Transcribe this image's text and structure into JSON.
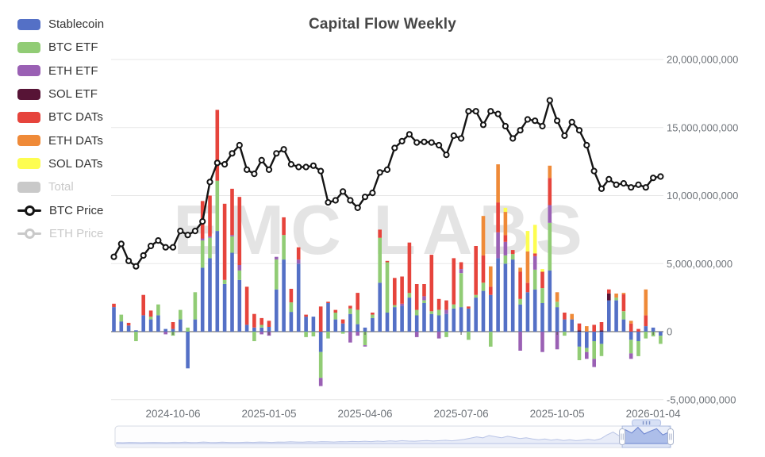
{
  "title": "Capital Flow Weekly",
  "watermark": "EMC LABS",
  "legend": {
    "items": [
      {
        "label": "Stablecoin",
        "color": "#5470c6",
        "enabled": true,
        "type": "rect"
      },
      {
        "label": "BTC ETF",
        "color": "#91cc75",
        "enabled": true,
        "type": "rect"
      },
      {
        "label": "ETH ETF",
        "color": "#9a60b4",
        "enabled": true,
        "type": "rect"
      },
      {
        "label": "SOL ETF",
        "color": "#571436",
        "enabled": true,
        "type": "rect"
      },
      {
        "label": "BTC DATs",
        "color": "#e6443c",
        "enabled": true,
        "type": "rect"
      },
      {
        "label": "ETH DATs",
        "color": "#ef8a38",
        "enabled": true,
        "type": "rect"
      },
      {
        "label": "SOL DATs",
        "color": "#fdfd50",
        "enabled": true,
        "type": "rect"
      },
      {
        "label": "Total",
        "color": "#c9c9c9",
        "enabled": false,
        "type": "rect"
      },
      {
        "label": "BTC Price",
        "color": "#141414",
        "enabled": true,
        "type": "line"
      },
      {
        "label": "ETH Price",
        "color": "#c9c9c9",
        "enabled": false,
        "type": "line"
      }
    ]
  },
  "chart_data": {
    "type": "bar",
    "subtype": "stacked-bar-with-line",
    "bar_unit": "USD (weekly net flow)",
    "ylabel": "",
    "xlabel": "",
    "grid": true,
    "legend_position": "top-left",
    "categories": [
      "2024-08-11",
      "2024-08-18",
      "2024-08-25",
      "2024-09-01",
      "2024-09-08",
      "2024-09-15",
      "2024-09-22",
      "2024-09-29",
      "2024-10-06",
      "2024-10-13",
      "2024-10-20",
      "2024-10-27",
      "2024-11-03",
      "2024-11-10",
      "2024-11-17",
      "2024-11-24",
      "2024-12-01",
      "2024-12-08",
      "2024-12-15",
      "2024-12-22",
      "2024-12-29",
      "2025-01-05",
      "2025-01-12",
      "2025-01-19",
      "2025-01-26",
      "2025-02-02",
      "2025-02-09",
      "2025-02-16",
      "2025-02-23",
      "2025-03-02",
      "2025-03-09",
      "2025-03-16",
      "2025-03-23",
      "2025-03-30",
      "2025-04-06",
      "2025-04-13",
      "2025-04-20",
      "2025-04-27",
      "2025-05-04",
      "2025-05-11",
      "2025-05-18",
      "2025-05-25",
      "2025-06-01",
      "2025-06-08",
      "2025-06-15",
      "2025-06-22",
      "2025-06-29",
      "2025-07-06",
      "2025-07-13",
      "2025-07-20",
      "2025-07-27",
      "2025-08-03",
      "2025-08-10",
      "2025-08-17",
      "2025-08-24",
      "2025-08-31",
      "2025-09-07",
      "2025-09-14",
      "2025-09-21",
      "2025-09-28",
      "2025-10-05",
      "2025-10-12",
      "2025-10-19",
      "2025-10-26",
      "2025-11-02",
      "2025-11-09",
      "2025-11-16",
      "2025-11-23",
      "2025-11-30",
      "2025-12-07",
      "2025-12-14",
      "2025-12-21",
      "2025-12-28",
      "2026-01-04",
      "2026-01-11"
    ],
    "x_tick_labels": [
      "2024-10-06",
      "2025-01-05",
      "2025-04-06",
      "2025-07-06",
      "2025-10-05",
      "2026-01-04"
    ],
    "x_tick_indices": [
      8,
      21,
      34,
      47,
      60,
      73
    ],
    "y_axis": {
      "position": "right",
      "ticks": [
        {
          "value": 20000000000,
          "label": "20,000,000,000"
        },
        {
          "value": 15000000000,
          "label": "15,000,000,000"
        },
        {
          "value": 10000000000,
          "label": "10,000,000,000"
        },
        {
          "value": 5000000000,
          "label": "5,000,000,000"
        },
        {
          "value": 0,
          "label": "0"
        },
        {
          "value": -5000000000,
          "label": "-5,000,000,000"
        }
      ],
      "range": [
        -7000000000,
        21500000000
      ]
    },
    "series": [
      {
        "name": "Stablecoin",
        "key": "stablecoin",
        "color": "#5470c6",
        "unit": "billion USD",
        "values": [
          1.8,
          0.75,
          0.45,
          0.1,
          1.2,
          0.9,
          1.2,
          0.2,
          0.2,
          0.9,
          -2.7,
          0.9,
          4.7,
          5.4,
          7.4,
          3.5,
          5.8,
          3.8,
          0.5,
          0.3,
          0.3,
          0.35,
          3.1,
          5.3,
          1.45,
          5.0,
          1.1,
          1.1,
          -1.5,
          2.1,
          0.9,
          0.6,
          1.3,
          0.55,
          0.3,
          1.0,
          3.6,
          1.4,
          1.8,
          1.9,
          2.5,
          1.2,
          2.1,
          1.3,
          1.2,
          1.3,
          1.7,
          1.8,
          1.7,
          2.5,
          3.0,
          2.7,
          5.4,
          5.0,
          5.3,
          2.0,
          2.9,
          3.1,
          2.1,
          4.5,
          1.8,
          0.9,
          0.9,
          -1.1,
          -1.2,
          -0.7,
          -0.9,
          2.3,
          2.3,
          0.9,
          -0.6,
          -0.7,
          0.4,
          0.3,
          -0.3
        ]
      },
      {
        "name": "BTC ETF",
        "key": "btc_etf",
        "color": "#91cc75",
        "unit": "billion USD",
        "values": [
          0,
          0.5,
          0,
          -0.7,
          0,
          0.2,
          0.8,
          0,
          -0.3,
          0.7,
          0.3,
          2.0,
          2.0,
          1.5,
          3.7,
          0.3,
          1.2,
          0.7,
          0,
          -0.7,
          0.2,
          0,
          2.2,
          1.8,
          0.7,
          0,
          -0.4,
          -0.35,
          -1.9,
          -0.5,
          0.5,
          -0.15,
          0.4,
          1.05,
          -1.0,
          0.25,
          3.3,
          3.7,
          0.15,
          0,
          0.35,
          0.4,
          0.2,
          0.2,
          0.4,
          -0.4,
          0.3,
          2.5,
          -0.6,
          0.2,
          0.6,
          -1.1,
          0,
          0.6,
          0.4,
          0.4,
          0,
          1.45,
          1.1,
          3.5,
          0.4,
          -0.3,
          0,
          -1.0,
          -0.3,
          -1.3,
          -0.9,
          0,
          0.2,
          0.6,
          -1.0,
          -1.1,
          -0.5,
          -0.35,
          -0.6
        ]
      },
      {
        "name": "ETH ETF",
        "key": "eth_etf",
        "color": "#9a60b4",
        "unit": "billion USD",
        "values": [
          0,
          0,
          0,
          0,
          0,
          0,
          0,
          -0.2,
          0,
          0,
          0,
          0,
          0.15,
          0.1,
          0,
          0,
          0.1,
          0.4,
          0,
          0,
          -0.2,
          -0.3,
          0.2,
          0,
          0,
          0.3,
          0,
          0,
          -0.6,
          0,
          0,
          0,
          -0.8,
          -0.3,
          -0.1,
          0,
          0,
          0,
          0,
          0.15,
          0,
          -0.4,
          0.3,
          0,
          -0.5,
          0.3,
          0,
          0.3,
          0,
          0,
          0,
          0,
          1.9,
          1.0,
          0,
          -1.4,
          0,
          1.0,
          -1.5,
          1.3,
          -1.3,
          0,
          0,
          0,
          -0.5,
          -0.6,
          0,
          0,
          0,
          0,
          -0.4,
          0,
          0,
          0,
          0
        ]
      },
      {
        "name": "SOL ETF",
        "key": "sol_etf",
        "color": "#571436",
        "unit": "billion USD",
        "values": [
          0,
          0,
          0,
          0,
          0,
          0,
          0,
          0,
          0,
          0,
          0,
          0,
          0,
          0,
          0,
          0,
          0,
          0,
          0,
          0,
          0,
          0,
          0,
          0,
          0,
          0,
          0,
          0,
          0,
          0,
          0,
          0,
          0,
          0,
          0,
          0,
          0,
          0,
          0,
          0,
          0,
          0,
          0,
          0,
          0,
          0,
          0,
          0,
          0,
          0,
          0,
          0,
          0,
          0,
          0,
          0,
          0,
          0,
          0,
          0,
          0,
          0,
          0,
          0.1,
          0,
          0,
          0.1,
          0.5,
          0,
          0,
          0,
          0,
          0,
          0,
          0
        ]
      },
      {
        "name": "BTC DATs",
        "key": "btc_dats",
        "color": "#e6443c",
        "unit": "billion USD",
        "values": [
          0.25,
          0,
          0.2,
          0,
          1.5,
          0.45,
          0,
          0,
          0.5,
          0,
          0,
          0,
          2.75,
          3.0,
          5.2,
          5.6,
          3.4,
          5.0,
          2.8,
          1.0,
          0.5,
          0.45,
          0,
          1.3,
          1.0,
          0.9,
          0.15,
          0,
          1.85,
          0.1,
          0.2,
          0.3,
          0.2,
          1.25,
          0,
          0.15,
          0.6,
          0.1,
          2.0,
          2.0,
          3.7,
          1.9,
          0.9,
          4.15,
          0.8,
          0.7,
          3.4,
          0.5,
          0.15,
          3.6,
          2.0,
          0.6,
          2.2,
          0.5,
          0.3,
          2.0,
          0.7,
          0.2,
          1.2,
          2.0,
          0,
          0.5,
          0,
          0.5,
          0,
          0.5,
          0.6,
          0.3,
          0,
          1.25,
          0.6,
          0.2,
          0.8,
          0,
          0
        ]
      },
      {
        "name": "ETH DATs",
        "key": "eth_dats",
        "color": "#ef8a38",
        "unit": "billion USD",
        "values": [
          0,
          0,
          0,
          0,
          0,
          0,
          0,
          0,
          0,
          0,
          0,
          0,
          0,
          0,
          0,
          0,
          0,
          0,
          0,
          0,
          0,
          0,
          0,
          0,
          0,
          0,
          0,
          0,
          0,
          0,
          0,
          0,
          0,
          0,
          0,
          0,
          0,
          0,
          0,
          0,
          0,
          0,
          0,
          0,
          0,
          0,
          0,
          0,
          0,
          0,
          2.9,
          1.5,
          2.8,
          1.7,
          0,
          0.3,
          2.3,
          0,
          0,
          0.9,
          0.7,
          0,
          0.4,
          0,
          0.4,
          0,
          0,
          0,
          0.3,
          0.1,
          0.2,
          0,
          1.9,
          0,
          0
        ]
      },
      {
        "name": "SOL DATs",
        "key": "sol_dats",
        "color": "#fdfd50",
        "unit": "billion USD",
        "values": [
          0,
          0,
          0,
          0,
          0,
          0,
          0,
          0,
          0,
          0,
          0,
          0,
          0,
          0,
          0,
          0,
          0,
          0,
          0,
          0,
          0,
          0,
          0,
          0,
          0,
          0,
          0,
          0,
          0,
          0,
          0,
          0,
          0,
          0,
          0,
          0,
          0,
          0,
          0,
          0,
          0,
          0,
          0,
          0,
          0,
          0,
          0,
          0,
          0,
          0,
          0,
          0,
          0,
          0.3,
          0,
          0,
          1.5,
          2.1,
          0.2,
          0,
          0,
          0,
          0,
          0,
          0,
          0,
          0,
          0,
          0,
          0,
          0,
          0,
          0,
          0,
          0
        ]
      }
    ],
    "line_series": [
      {
        "name": "BTC Price",
        "color": "#141414",
        "visible": true,
        "axis": "hidden price axis (values mapped to flow-axis billions for display)",
        "values": [
          5.5,
          6.45,
          5.2,
          4.8,
          5.6,
          6.3,
          6.7,
          6.2,
          6.2,
          7.4,
          7.1,
          7.4,
          8.1,
          11.0,
          12.4,
          12.3,
          13.1,
          13.7,
          11.9,
          11.6,
          12.6,
          11.9,
          13.1,
          13.4,
          12.3,
          12.1,
          12.1,
          12.2,
          11.8,
          9.5,
          9.65,
          10.3,
          9.65,
          9.1,
          9.9,
          10.2,
          11.7,
          11.9,
          13.5,
          14.0,
          14.5,
          13.9,
          13.95,
          13.9,
          13.7,
          13.0,
          14.4,
          14.2,
          16.2,
          16.2,
          15.2,
          16.2,
          16.0,
          15.1,
          14.2,
          14.8,
          15.6,
          15.5,
          15.1,
          17.0,
          15.5,
          14.4,
          15.4,
          14.8,
          13.7,
          11.8,
          10.5,
          11.2,
          10.8,
          10.9,
          10.6,
          10.8,
          10.6,
          11.3,
          11.4
        ]
      },
      {
        "name": "ETH Price",
        "color": "#c9c9c9",
        "visible": false,
        "values": []
      }
    ],
    "disabled_series": [
      "Total",
      "ETH Price"
    ]
  },
  "navigator": {
    "window": [
      0.913,
      1.0
    ],
    "sparkline": [
      0.05,
      0.04,
      0.06,
      0.05,
      0.04,
      0.05,
      0.06,
      0.05,
      0.04,
      0.06,
      0.05,
      0.07,
      0.05,
      0.06,
      0.08,
      0.06,
      0.05,
      0.07,
      0.06,
      0.05,
      0.06,
      0.07,
      0.06,
      0.08,
      0.07,
      0.06,
      0.08,
      0.07,
      0.09,
      0.08,
      0.07,
      0.09,
      0.08,
      0.1,
      0.09,
      0.08,
      0.1,
      0.09,
      0.11,
      0.1,
      0.12,
      0.1,
      0.13,
      0.11,
      0.14,
      0.12,
      0.15,
      0.13,
      0.12,
      0.14,
      0.16,
      0.13,
      0.15,
      0.17,
      0.14,
      0.18,
      0.22,
      0.28,
      0.35,
      0.3,
      0.42,
      0.36,
      0.3,
      0.38,
      0.32,
      0.26,
      0.3,
      0.24,
      0.2,
      0.24,
      0.18,
      0.22,
      0.16,
      0.2,
      0.15,
      0.18,
      0.22,
      0.17,
      0.25,
      0.45,
      0.6,
      0.4,
      0.72,
      0.55,
      0.85,
      0.5,
      0.65,
      0.78,
      0.45,
      0.6
    ]
  }
}
